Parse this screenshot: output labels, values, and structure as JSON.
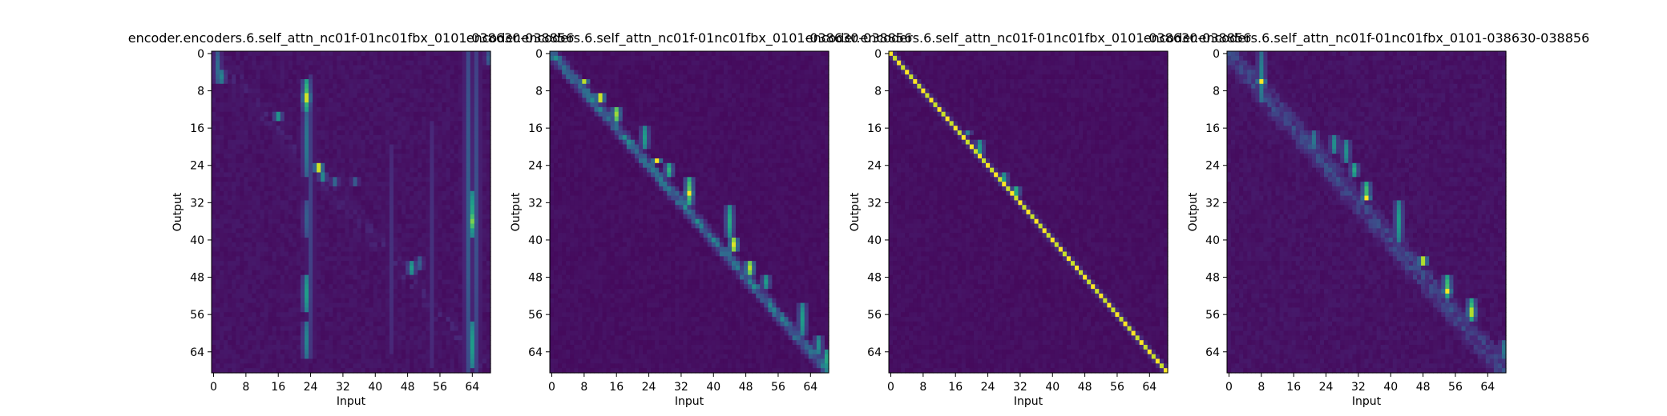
{
  "colors": {
    "background": "#ffffff",
    "colormap": "viridis",
    "viridis_stops": [
      "#440154",
      "#482878",
      "#3e4989",
      "#31688e",
      "#26828e",
      "#1f9e89",
      "#35b779",
      "#6ece58",
      "#b5de2b",
      "#fde725"
    ]
  },
  "chart_data": [
    {
      "type": "heatmap",
      "title": "encoder.encoders.6.self_attn_nc01f-01nc01fbx_0101-038630-038856",
      "xlabel": "Input",
      "ylabel": "Output",
      "x_ticks": [
        "0",
        "8",
        "16",
        "24",
        "32",
        "40",
        "48",
        "56",
        "64"
      ],
      "y_ticks": [
        "0",
        "8",
        "16",
        "24",
        "32",
        "40",
        "48",
        "56",
        "64"
      ],
      "x_range": [
        0,
        69
      ],
      "y_range": [
        0,
        69
      ],
      "value_range": [
        0,
        1
      ],
      "pattern": "vertical_bands",
      "diagonal_peak": 0.12,
      "background_level": 0.05,
      "bands": [
        {
          "x": 1,
          "y0": 0,
          "y1": 7,
          "value": 0.35
        },
        {
          "x": 2,
          "y0": 4,
          "y1": 7,
          "value": 0.45
        },
        {
          "x": 16,
          "y0": 13,
          "y1": 15,
          "value": 0.55
        },
        {
          "x": 23,
          "y0": 6,
          "y1": 13,
          "value": 0.7
        },
        {
          "x": 23,
          "y0": 9,
          "y1": 11,
          "value": 1.0
        },
        {
          "x": 23,
          "y0": 13,
          "y1": 27,
          "value": 0.4
        },
        {
          "x": 23,
          "y0": 32,
          "y1": 40,
          "value": 0.3
        },
        {
          "x": 23,
          "y0": 48,
          "y1": 56,
          "value": 0.55
        },
        {
          "x": 23,
          "y0": 58,
          "y1": 66,
          "value": 0.45
        },
        {
          "x": 24,
          "y0": 5,
          "y1": 66,
          "value": 0.2
        },
        {
          "x": 26,
          "y0": 24,
          "y1": 26,
          "value": 1.0
        },
        {
          "x": 27,
          "y0": 26,
          "y1": 28,
          "value": 0.5
        },
        {
          "x": 30,
          "y0": 27,
          "y1": 29,
          "value": 0.35
        },
        {
          "x": 35,
          "y0": 27,
          "y1": 29,
          "value": 0.3
        },
        {
          "x": 44,
          "y0": 20,
          "y1": 65,
          "value": 0.14
        },
        {
          "x": 49,
          "y0": 45,
          "y1": 48,
          "value": 0.55
        },
        {
          "x": 51,
          "y0": 44,
          "y1": 47,
          "value": 0.3
        },
        {
          "x": 54,
          "y0": 15,
          "y1": 68,
          "value": 0.14
        },
        {
          "x": 63,
          "y0": 0,
          "y1": 69,
          "value": 0.3
        },
        {
          "x": 64,
          "y0": 30,
          "y1": 40,
          "value": 0.6
        },
        {
          "x": 64,
          "y0": 35,
          "y1": 38,
          "value": 0.8
        },
        {
          "x": 64,
          "y0": 58,
          "y1": 68,
          "value": 0.55
        },
        {
          "x": 65,
          "y0": 0,
          "y1": 69,
          "value": 0.25
        },
        {
          "x": 68,
          "y0": 0,
          "y1": 3,
          "value": 0.3
        }
      ]
    },
    {
      "type": "heatmap",
      "title": "encoder.encoders.6.self_attn_nc01f-01nc01fbx_0101-038630-038856",
      "xlabel": "Input",
      "ylabel": "Output",
      "x_ticks": [
        "0",
        "8",
        "16",
        "24",
        "32",
        "40",
        "48",
        "56",
        "64"
      ],
      "y_ticks": [
        "0",
        "8",
        "16",
        "24",
        "32",
        "40",
        "48",
        "56",
        "64"
      ],
      "x_range": [
        0,
        69
      ],
      "y_range": [
        0,
        69
      ],
      "value_range": [
        0,
        1
      ],
      "pattern": "diagonal",
      "diagonal_peak": 0.6,
      "background_level": 0.04,
      "bands": [
        {
          "x": 8,
          "y0": 6,
          "y1": 7,
          "value": 0.9
        },
        {
          "x": 12,
          "y0": 9,
          "y1": 11,
          "value": 1.0
        },
        {
          "x": 16,
          "y0": 12,
          "y1": 15,
          "value": 0.85
        },
        {
          "x": 23,
          "y0": 16,
          "y1": 21,
          "value": 0.55
        },
        {
          "x": 26,
          "y0": 23,
          "y1": 24,
          "value": 1.0
        },
        {
          "x": 29,
          "y0": 24,
          "y1": 27,
          "value": 0.65
        },
        {
          "x": 34,
          "y0": 27,
          "y1": 33,
          "value": 0.75
        },
        {
          "x": 34,
          "y0": 30,
          "y1": 31,
          "value": 1.0
        },
        {
          "x": 44,
          "y0": 33,
          "y1": 40,
          "value": 0.6
        },
        {
          "x": 45,
          "y0": 40,
          "y1": 43,
          "value": 0.95
        },
        {
          "x": 49,
          "y0": 45,
          "y1": 48,
          "value": 0.9
        },
        {
          "x": 53,
          "y0": 48,
          "y1": 51,
          "value": 0.55
        },
        {
          "x": 62,
          "y0": 54,
          "y1": 61,
          "value": 0.55
        },
        {
          "x": 66,
          "y0": 61,
          "y1": 65,
          "value": 0.5
        },
        {
          "x": 68,
          "y0": 64,
          "y1": 68,
          "value": 0.6
        }
      ]
    },
    {
      "type": "heatmap",
      "title": "encoder.encoders.6.self_attn_nc01f-01nc01fbx_0101-038630-038856",
      "xlabel": "Input",
      "ylabel": "Output",
      "x_ticks": [
        "0",
        "8",
        "16",
        "24",
        "32",
        "40",
        "48",
        "56",
        "64"
      ],
      "y_ticks": [
        "0",
        "8",
        "16",
        "24",
        "32",
        "40",
        "48",
        "56",
        "64"
      ],
      "x_range": [
        0,
        69
      ],
      "y_range": [
        0,
        69
      ],
      "value_range": [
        0,
        1
      ],
      "pattern": "identity",
      "diagonal_peak": 1.0,
      "background_level": 0.04,
      "bands": [
        {
          "x": 19,
          "y0": 17,
          "y1": 18,
          "value": 0.45
        },
        {
          "x": 22,
          "y0": 19,
          "y1": 23,
          "value": 0.55
        },
        {
          "x": 28,
          "y0": 26,
          "y1": 29,
          "value": 0.55
        },
        {
          "x": 31,
          "y0": 29,
          "y1": 31,
          "value": 0.65
        }
      ]
    },
    {
      "type": "heatmap",
      "title": "encoder.encoders.6.self_attn_nc01f-01nc01fbx_0101-038630-038856",
      "xlabel": "Input",
      "ylabel": "Output",
      "x_ticks": [
        "0",
        "8",
        "16",
        "24",
        "32",
        "40",
        "48",
        "56",
        "64"
      ],
      "y_ticks": [
        "0",
        "8",
        "16",
        "24",
        "32",
        "40",
        "48",
        "56",
        "64"
      ],
      "x_range": [
        0,
        69
      ],
      "y_range": [
        0,
        69
      ],
      "value_range": [
        0,
        1
      ],
      "pattern": "diffuse_diagonal",
      "diagonal_peak": 0.35,
      "background_level": 0.05,
      "bands": [
        {
          "x": 8,
          "y0": 0,
          "y1": 11,
          "value": 0.45
        },
        {
          "x": 8,
          "y0": 6,
          "y1": 7,
          "value": 1.0
        },
        {
          "x": 21,
          "y0": 17,
          "y1": 21,
          "value": 0.4
        },
        {
          "x": 26,
          "y0": 18,
          "y1": 22,
          "value": 0.5
        },
        {
          "x": 29,
          "y0": 19,
          "y1": 24,
          "value": 0.5
        },
        {
          "x": 31,
          "y0": 24,
          "y1": 27,
          "value": 0.6
        },
        {
          "x": 34,
          "y0": 28,
          "y1": 32,
          "value": 0.7
        },
        {
          "x": 34,
          "y0": 31,
          "y1": 32,
          "value": 1.0
        },
        {
          "x": 42,
          "y0": 32,
          "y1": 41,
          "value": 0.55
        },
        {
          "x": 48,
          "y0": 44,
          "y1": 46,
          "value": 0.95
        },
        {
          "x": 54,
          "y0": 48,
          "y1": 53,
          "value": 0.7
        },
        {
          "x": 54,
          "y0": 51,
          "y1": 52,
          "value": 1.0
        },
        {
          "x": 60,
          "y0": 53,
          "y1": 58,
          "value": 0.7
        },
        {
          "x": 60,
          "y0": 55,
          "y1": 57,
          "value": 0.95
        },
        {
          "x": 68,
          "y0": 62,
          "y1": 66,
          "value": 0.4
        }
      ]
    }
  ]
}
